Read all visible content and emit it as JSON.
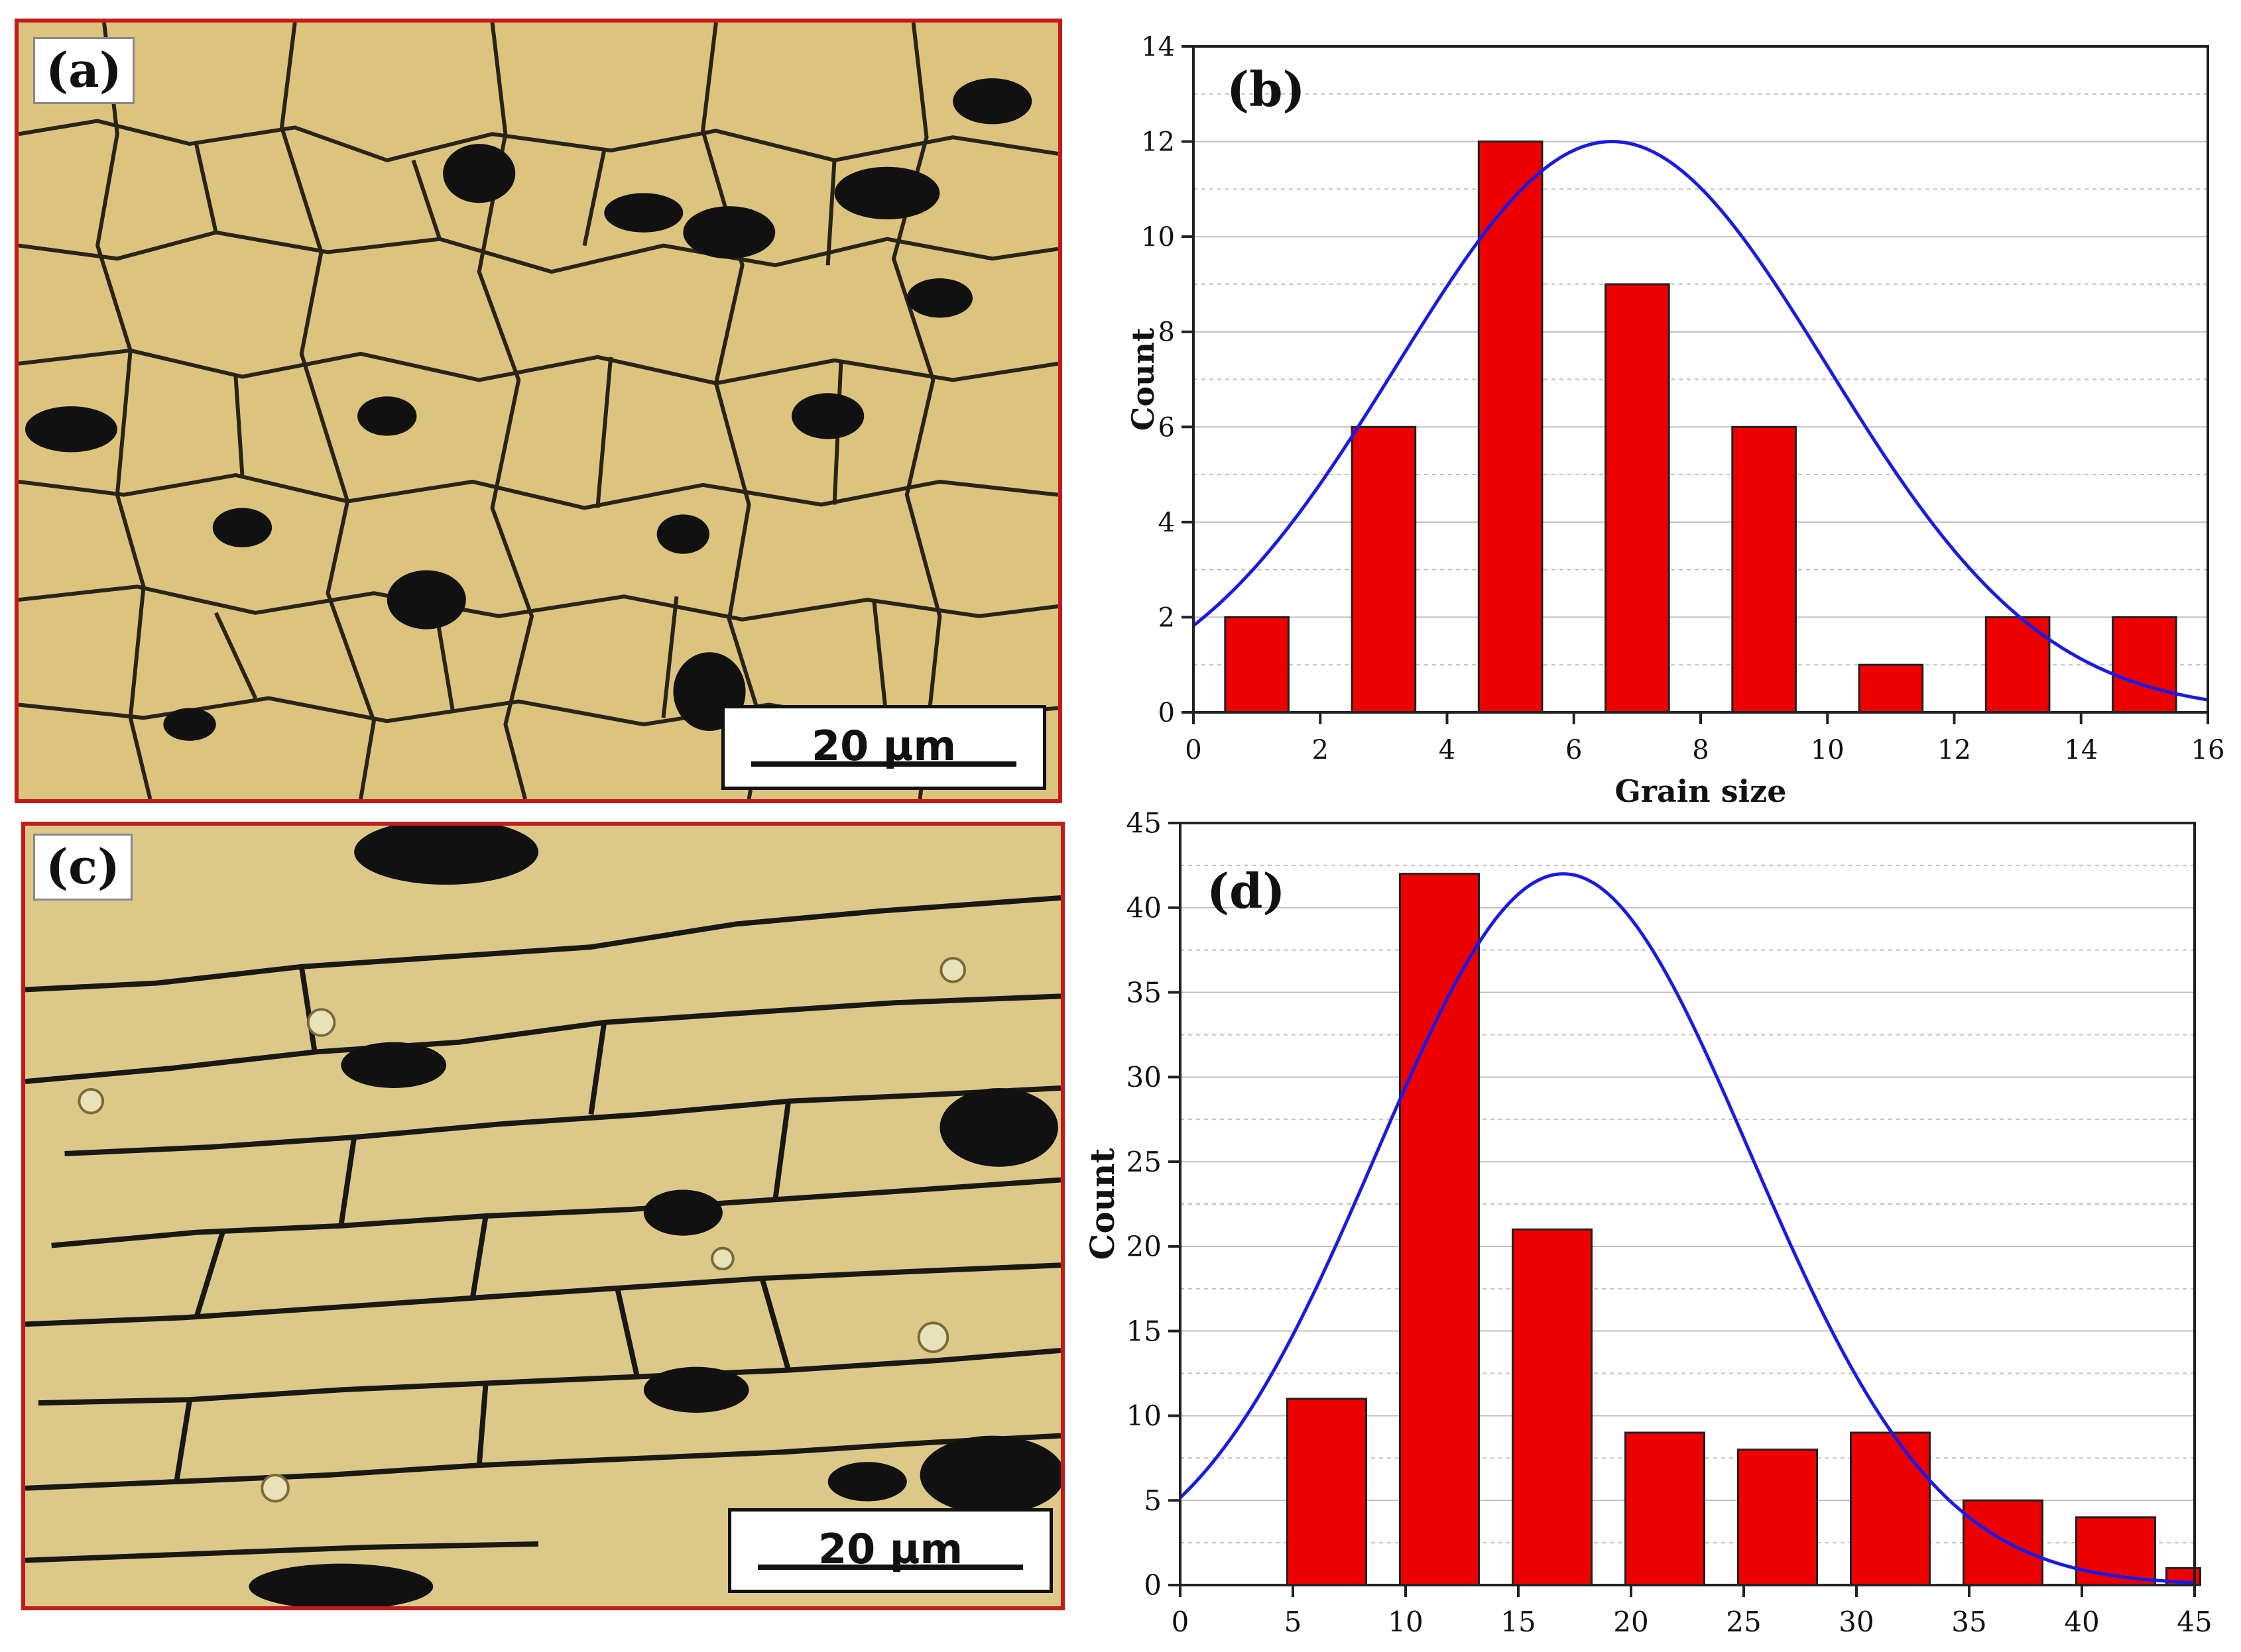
{
  "panels": {
    "a": {
      "label": "(a)",
      "scale_bar": "20 µm"
    },
    "c": {
      "label": "(c)",
      "scale_bar": "20 µm"
    }
  },
  "colors": {
    "bar": "#ee0000",
    "curve": "#1a1ae6",
    "frame": "#c41a1a",
    "grid": "#bfbfbf"
  },
  "chart_data": [
    {
      "type": "bar",
      "panel_label": "(b)",
      "title": "",
      "xlabel": "Grain size",
      "ylabel": "Count",
      "bars": [
        {
          "x": 1,
          "value": 2
        },
        {
          "x": 3,
          "value": 6
        },
        {
          "x": 5,
          "value": 12
        },
        {
          "x": 7,
          "value": 9
        },
        {
          "x": 9,
          "value": 6
        },
        {
          "x": 11,
          "value": 1
        },
        {
          "x": 13,
          "value": 2
        },
        {
          "x": 15,
          "value": 2
        }
      ],
      "bar_width": 1,
      "xlim": [
        0,
        16
      ],
      "ylim": [
        0,
        14
      ],
      "xticks": [
        0,
        2,
        4,
        6,
        8,
        10,
        12,
        14,
        16
      ],
      "yticks": [
        0,
        2,
        4,
        6,
        8,
        10,
        12,
        14
      ],
      "fit": {
        "type": "gaussian",
        "peak_x": 6.6,
        "peak_y": 12,
        "sigma": 3.4
      },
      "grid": true
    },
    {
      "type": "bar",
      "panel_label": "(d)",
      "title": "",
      "xlabel": "",
      "ylabel": "Count",
      "bars": [
        {
          "x": 6.5,
          "value": 11
        },
        {
          "x": 11.5,
          "value": 42
        },
        {
          "x": 16.5,
          "value": 21
        },
        {
          "x": 21.5,
          "value": 9
        },
        {
          "x": 26.5,
          "value": 8
        },
        {
          "x": 31.5,
          "value": 9
        },
        {
          "x": 36.5,
          "value": 5
        },
        {
          "x": 41.5,
          "value": 4
        },
        {
          "x": 44.5,
          "value": 1
        }
      ],
      "bar_widths": [
        3.5,
        3.5,
        3.5,
        3.5,
        3.5,
        3.5,
        3.5,
        3.5,
        1.5
      ],
      "xlim": [
        0,
        45
      ],
      "ylim": [
        0,
        45
      ],
      "xticks": [
        0,
        5,
        10,
        15,
        20,
        25,
        30,
        35,
        40,
        45
      ],
      "yticks": [
        0,
        5,
        10,
        15,
        20,
        25,
        30,
        35,
        40,
        45
      ],
      "fit": {
        "type": "gaussian",
        "peak_x": 17,
        "peak_y": 42,
        "sigma": 8.3
      },
      "grid": true
    }
  ]
}
